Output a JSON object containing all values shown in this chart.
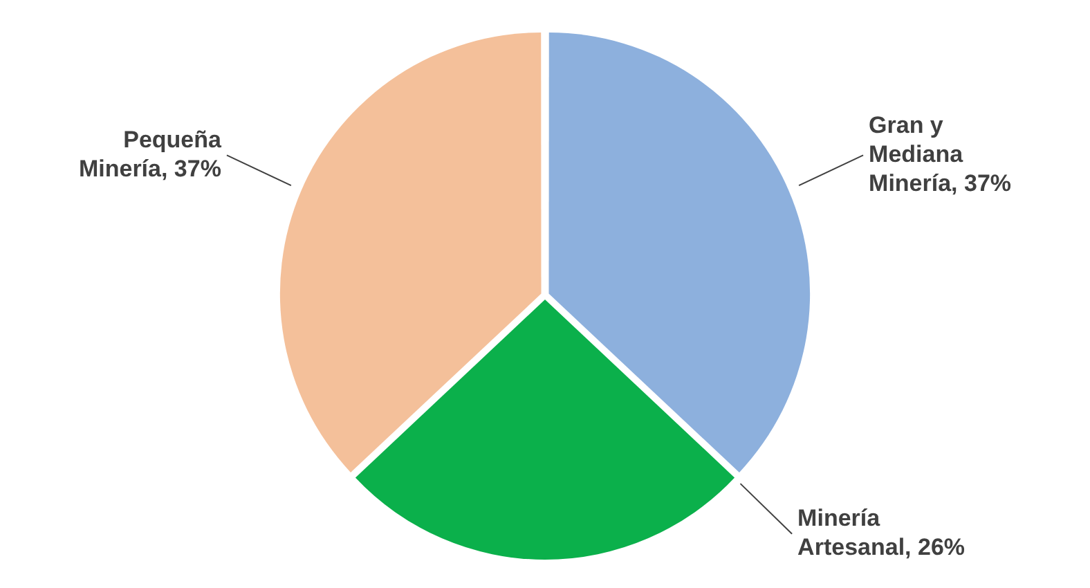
{
  "chart_data": {
    "type": "pie",
    "categories": [
      "Gran y Mediana Minería",
      "Minería Artesanal",
      "Pequeña Minería"
    ],
    "values": [
      37,
      26,
      37
    ],
    "value_labels": [
      "37%",
      "26%",
      "37%"
    ],
    "colors": [
      "#8db0dd",
      "#0bb04b",
      "#f4c09a"
    ],
    "legend": false
  }
}
